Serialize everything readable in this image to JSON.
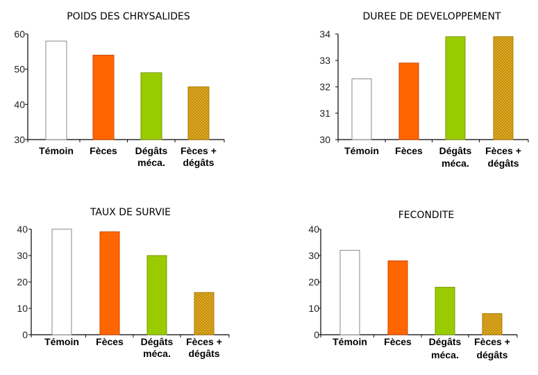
{
  "colors": {
    "temoin": "#ffffff",
    "feces": "#ff6600",
    "degats": "#99cc00",
    "feces_degats": "#d4a020",
    "hatch": "#cc8800",
    "axis": "#000000"
  },
  "chart_data": [
    {
      "type": "bar",
      "title": "POIDS DES CHRYSALIDES",
      "categories": [
        "Témoin",
        "Fèces",
        "Dégâts méca.",
        "Fèces + dégâts"
      ],
      "values": [
        58,
        54,
        49,
        45
      ],
      "ylim": [
        30,
        60
      ],
      "yticks": [
        30,
        40,
        50,
        60
      ],
      "xlabel": "",
      "ylabel": ""
    },
    {
      "type": "bar",
      "title": "DUREE DE DEVELOPPEMENT",
      "categories": [
        "Témoin",
        "Fèces",
        "Dégâts méca.",
        "Fèces + dégâts"
      ],
      "values": [
        32.3,
        32.9,
        33.9,
        33.9
      ],
      "ylim": [
        30,
        34
      ],
      "yticks": [
        30,
        31,
        32,
        33,
        34
      ],
      "xlabel": "",
      "ylabel": ""
    },
    {
      "type": "bar",
      "title": "TAUX DE SURVIE",
      "categories": [
        "Témoin",
        "Fèces",
        "Dégâts méca.",
        "Fèces + dégâts"
      ],
      "values": [
        40,
        39,
        30,
        16
      ],
      "ylim": [
        0,
        40
      ],
      "yticks": [
        0,
        10,
        20,
        30,
        40
      ],
      "xlabel": "",
      "ylabel": ""
    },
    {
      "type": "bar",
      "title": "FECONDITE",
      "categories": [
        "Témoin",
        "Fèces",
        "Dégâts méca.",
        "Fèces + dégâts"
      ],
      "values": [
        32,
        28,
        18,
        8
      ],
      "ylim": [
        0,
        40
      ],
      "yticks": [
        0,
        10,
        20,
        30,
        40
      ],
      "xlabel": "",
      "ylabel": ""
    }
  ]
}
